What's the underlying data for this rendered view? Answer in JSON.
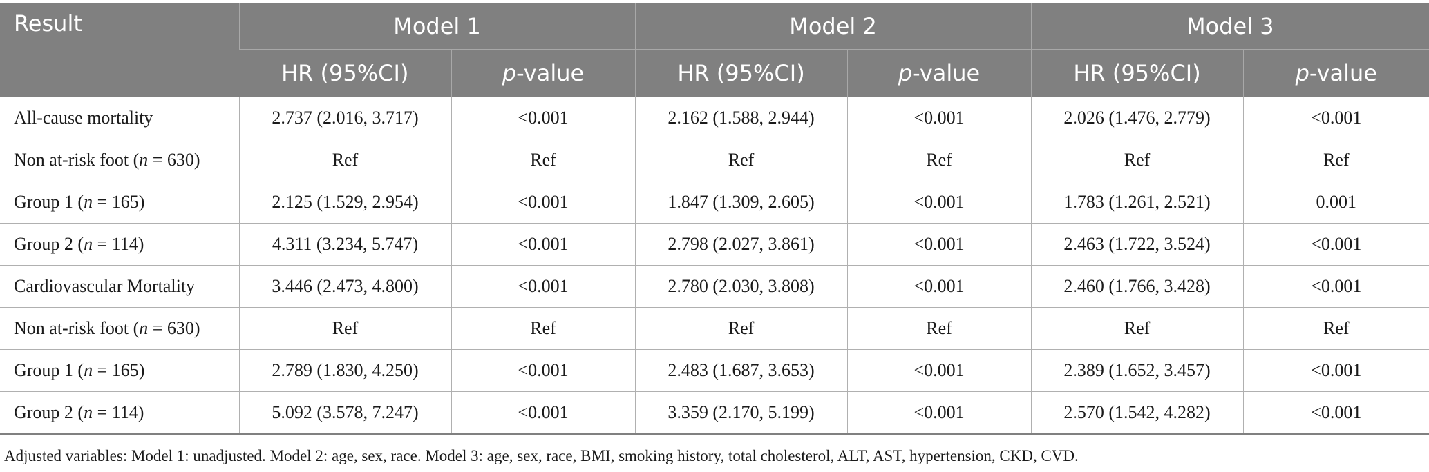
{
  "table": {
    "header": {
      "result": "Result",
      "models": [
        "Model 1",
        "Model 2",
        "Model 3"
      ],
      "sub": {
        "hr": "HR (95%CI)",
        "p_italic": "p",
        "p_rest": "-value"
      }
    },
    "rows": [
      {
        "pre": "All-cause mortality",
        "it": "",
        "post": "",
        "cells": [
          "2.737 (2.016, 3.717)",
          "<0.001",
          "2.162 (1.588, 2.944)",
          "<0.001",
          "2.026 (1.476, 2.779)",
          "<0.001"
        ]
      },
      {
        "pre": "Non at-risk foot (",
        "it": "n",
        "post": " = 630)",
        "cells": [
          "Ref",
          "Ref",
          "Ref",
          "Ref",
          "Ref",
          "Ref"
        ]
      },
      {
        "pre": "Group 1 (",
        "it": "n",
        "post": " = 165)",
        "cells": [
          "2.125 (1.529, 2.954)",
          "<0.001",
          "1.847 (1.309, 2.605)",
          "<0.001",
          "1.783 (1.261, 2.521)",
          "0.001"
        ]
      },
      {
        "pre": "Group 2 (",
        "it": "n",
        "post": " = 114)",
        "cells": [
          "4.311 (3.234, 5.747)",
          "<0.001",
          "2.798 (2.027, 3.861)",
          "<0.001",
          "2.463 (1.722, 3.524)",
          "<0.001"
        ]
      },
      {
        "pre": "Cardiovascular Mortality",
        "it": "",
        "post": "",
        "cells": [
          "3.446 (2.473, 4.800)",
          "<0.001",
          "2.780 (2.030, 3.808)",
          "<0.001",
          "2.460 (1.766, 3.428)",
          "<0.001"
        ]
      },
      {
        "pre": "Non at-risk foot (",
        "it": "n",
        "post": " = 630)",
        "cells": [
          "Ref",
          "Ref",
          "Ref",
          "Ref",
          "Ref",
          "Ref"
        ]
      },
      {
        "pre": "Group 1 (",
        "it": "n",
        "post": " = 165)",
        "cells": [
          "2.789 (1.830, 4.250)",
          "<0.001",
          "2.483 (1.687, 3.653)",
          "<0.001",
          "2.389 (1.652, 3.457)",
          "<0.001"
        ]
      },
      {
        "pre": "Group 2 (",
        "it": "n",
        "post": " = 114)",
        "cells": [
          "5.092 (3.578, 7.247)",
          "<0.001",
          "3.359 (2.170, 5.199)",
          "<0.001",
          "2.570 (1.542, 4.282)",
          "<0.001"
        ]
      }
    ]
  },
  "footnote": "Adjusted variables: Model 1: unadjusted. Model 2: age, sex, race. Model 3: age, sex, race, BMI, smoking history, total cholesterol, ALT, AST, hypertension, CKD, CVD.",
  "colors": {
    "header_bg": "#808080",
    "header_text": "#ffffff",
    "grid": "#b0b0b0",
    "body_text": "#1a1a1a"
  }
}
